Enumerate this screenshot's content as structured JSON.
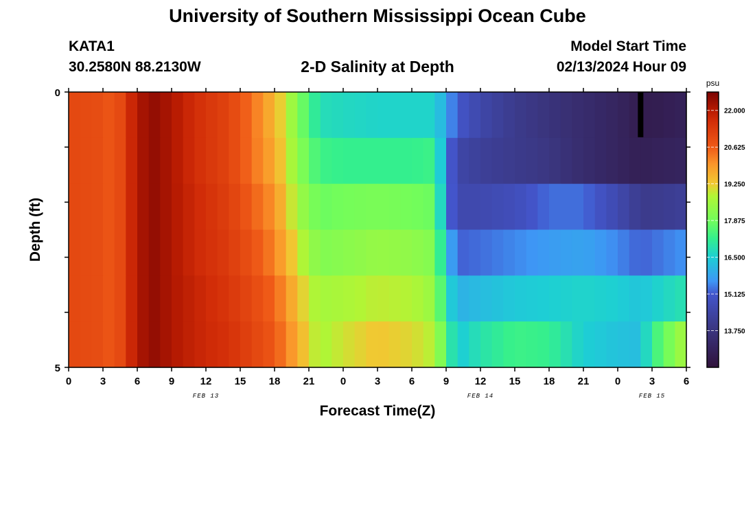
{
  "header": {
    "title_top": "University of Southern Mississippi Ocean Cube",
    "title_bottom": "University of Southern Mississippi Ocean Cube",
    "station": "KATA1",
    "coordinates": "30.2580N  88.2130W",
    "subtitle": "2-D Salinity at Depth",
    "model_start_label": "Model Start Time",
    "model_start_value": "02/13/2024 Hour 09"
  },
  "chart_data": {
    "type": "heatmap",
    "xlabel": "Forecast Time(Z)",
    "ylabel": "Depth (ft)",
    "x_tick_labels": [
      "0",
      "3",
      "6",
      "9",
      "12",
      "15",
      "18",
      "21",
      "0",
      "3",
      "6",
      "9",
      "12",
      "15",
      "18",
      "21",
      "0",
      "3",
      "6"
    ],
    "x_range_hours": [
      0,
      54
    ],
    "date_labels": [
      {
        "text": "FEB 13",
        "hour": 12
      },
      {
        "text": "FEB 14",
        "hour": 36
      },
      {
        "text": "FEB 15",
        "hour": 51
      }
    ],
    "y_tick_labels": [
      "0",
      "5"
    ],
    "y_range": [
      0,
      5
    ],
    "depth_layers": [
      0,
      1,
      2,
      3,
      4,
      5
    ],
    "colorbar": {
      "unit": "psu",
      "min": 12.375,
      "max": 22.6875,
      "tick_values": [
        22.0,
        20.625,
        19.25,
        17.875,
        16.5,
        15.125,
        13.75
      ],
      "tick_labels": [
        "22.000",
        "20.625",
        "19.250",
        "17.875",
        "16.500",
        "15.125",
        "13.750"
      ]
    },
    "missing_marker": {
      "hour": 50,
      "layer": 0,
      "color": "#000000"
    },
    "salinity_keyframes": {
      "hours": [
        0,
        3,
        4,
        6,
        7.5,
        9,
        11,
        14,
        16,
        18,
        19,
        20,
        21,
        22,
        24,
        27,
        30,
        32,
        33,
        34,
        36,
        39,
        42,
        45,
        48,
        50,
        51,
        54
      ],
      "layers": [
        [
          21.0,
          20.9,
          20.6,
          22.1,
          22.4,
          22.1,
          21.6,
          21.1,
          20.4,
          19.5,
          18.9,
          18.1,
          17.4,
          16.8,
          16.7,
          16.6,
          16.6,
          16.6,
          15.8,
          15.1,
          14.5,
          14.0,
          13.7,
          13.4,
          13.1,
          12.8,
          12.8,
          13.0
        ],
        [
          21.0,
          20.9,
          20.6,
          22.1,
          22.4,
          22.1,
          21.6,
          21.1,
          20.4,
          19.7,
          19.0,
          18.3,
          17.7,
          17.3,
          17.2,
          17.2,
          17.2,
          17.3,
          15.6,
          14.5,
          14.2,
          14.0,
          13.8,
          13.4,
          13.1,
          12.9,
          13.0,
          13.1
        ],
        [
          21.0,
          20.9,
          20.6,
          22.1,
          22.4,
          22.1,
          21.7,
          21.2,
          20.6,
          20.0,
          19.3,
          18.6,
          18.1,
          17.8,
          17.9,
          18.0,
          17.9,
          17.8,
          15.6,
          14.6,
          14.6,
          14.8,
          15.3,
          15.3,
          14.6,
          14.0,
          14.0,
          14.2
        ],
        [
          21.0,
          20.9,
          20.6,
          22.1,
          22.4,
          22.1,
          21.7,
          21.3,
          20.8,
          20.2,
          19.6,
          19.0,
          18.5,
          18.1,
          18.2,
          18.4,
          18.3,
          18.1,
          16.2,
          15.2,
          15.3,
          15.5,
          15.7,
          15.8,
          15.5,
          15.2,
          15.3,
          15.6
        ],
        [
          21.0,
          20.9,
          20.6,
          22.1,
          22.4,
          22.1,
          21.8,
          21.4,
          21.0,
          20.5,
          20.0,
          19.4,
          18.9,
          18.6,
          18.7,
          18.9,
          18.8,
          18.4,
          16.8,
          16.0,
          16.2,
          16.4,
          16.5,
          16.6,
          16.5,
          16.3,
          16.5,
          16.9
        ],
        [
          21.0,
          20.9,
          20.6,
          22.1,
          22.4,
          22.1,
          21.8,
          21.5,
          21.1,
          20.7,
          20.2,
          19.7,
          19.1,
          18.7,
          19.0,
          19.3,
          19.1,
          18.8,
          17.4,
          16.4,
          16.9,
          17.3,
          17.2,
          16.5,
          16.3,
          16.2,
          17.2,
          18.7
        ]
      ]
    },
    "colormap_stops": [
      {
        "v": 12.375,
        "c": "#30123b"
      },
      {
        "v": 13.75,
        "c": "#3a357e"
      },
      {
        "v": 15.125,
        "c": "#4356cc"
      },
      {
        "v": 15.6,
        "c": "#3e96f5"
      },
      {
        "v": 16.5,
        "c": "#1dcfd4"
      },
      {
        "v": 17.2,
        "c": "#34ef8e"
      },
      {
        "v": 17.875,
        "c": "#72fd5b"
      },
      {
        "v": 18.8,
        "c": "#b2f535"
      },
      {
        "v": 19.25,
        "c": "#f0c932"
      },
      {
        "v": 20.0,
        "c": "#fb952a"
      },
      {
        "v": 20.625,
        "c": "#ef5a17"
      },
      {
        "v": 21.6,
        "c": "#d22d08"
      },
      {
        "v": 22.0,
        "c": "#b71b02"
      },
      {
        "v": 22.6875,
        "c": "#7a0403"
      }
    ]
  }
}
